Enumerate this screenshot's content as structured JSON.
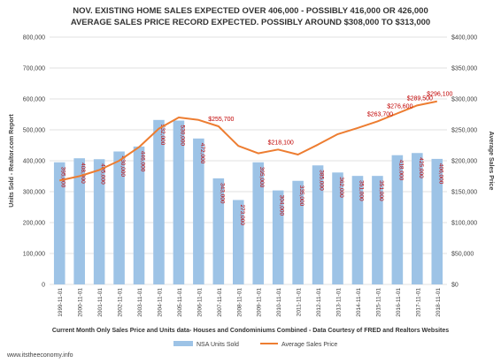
{
  "chart_data": {
    "type": "bar",
    "title_lines": [
      "NOV. EXISTING HOME SALES EXPECTED OVER 406,000 - POSSIBLY 416,000 OR 426,000",
      "AVERAGE SALES PRICE RECORD EXPECTED. POSSIBLY AROUND $308,000 TO $313,000"
    ],
    "categories": [
      "1999-11-01",
      "2000-11-01",
      "2001-11-01",
      "2002-11-01",
      "2003-11-01",
      "2004-11-01",
      "2005-11-01",
      "2006-11-01",
      "2007-11-01",
      "2008-11-01",
      "2009-11-01",
      "2010-11-01",
      "2011-11-01",
      "2012-11-01",
      "2013-11-01",
      "2014-11-01",
      "2015-11-01",
      "2016-11-01",
      "2017-11-01",
      "2018-11-01"
    ],
    "series": [
      {
        "name": "NSA Units Sold",
        "type": "bar",
        "axis": "left",
        "color": "#9dc3e6",
        "values": [
          395000,
          408000,
          405000,
          430000,
          446000,
          532000,
          530000,
          472000,
          343000,
          273000,
          395000,
          304000,
          335000,
          385000,
          362000,
          351000,
          351000,
          418000,
          425000,
          406000
        ],
        "labels": [
          "395,000",
          "408,000",
          "405,000",
          "430,000",
          "446,000",
          "532,000",
          "530,000",
          "472,000",
          "343,000",
          "273,000",
          "395,000",
          "304,000",
          "335,000",
          "385,000",
          "362,000",
          "351,000",
          "351,000",
          "418,000",
          "425,000",
          "406,000"
        ]
      },
      {
        "name": "Average Sales Price",
        "type": "line",
        "axis": "right",
        "color": "#ed7d31",
        "values": [
          168000,
          175000,
          185000,
          200000,
          222000,
          252000,
          270000,
          266000,
          255700,
          224000,
          212000,
          218100,
          210000,
          226000,
          243000,
          253000,
          263700,
          276600,
          289500,
          296100
        ],
        "labels": {
          "8": "$255,700",
          "11": "$218,100",
          "16": "$263,700",
          "17": "$276,600",
          "18": "$289,500",
          "19": "$296,100"
        }
      }
    ],
    "y_left": {
      "label": "Units Sold - Realtor.com Report",
      "range": [
        0,
        800000
      ],
      "ticks": [
        "0",
        "100,000",
        "200,000",
        "300,000",
        "400,000",
        "500,000",
        "600,000",
        "700,000",
        "800,000"
      ]
    },
    "y_right": {
      "label": "Average Sales Price",
      "range": [
        0,
        400000
      ],
      "ticks": [
        "$0",
        "$50,000",
        "$100,000",
        "$150,000",
        "$200,000",
        "$250,000",
        "$300,000",
        "$350,000",
        "$400,000"
      ]
    },
    "xlabel": "Current Month Only Sales Price and Units data- Houses and Condominiums Combined - Data Courtesy of FRED and Realtors Websites",
    "grid": true,
    "legend": "bottom-center",
    "website": "www.itstheeconomy.info",
    "colors": {
      "title": "#333333",
      "label": "#c00000",
      "grid": "#d9d9d9",
      "axis_text": "#404040"
    }
  }
}
